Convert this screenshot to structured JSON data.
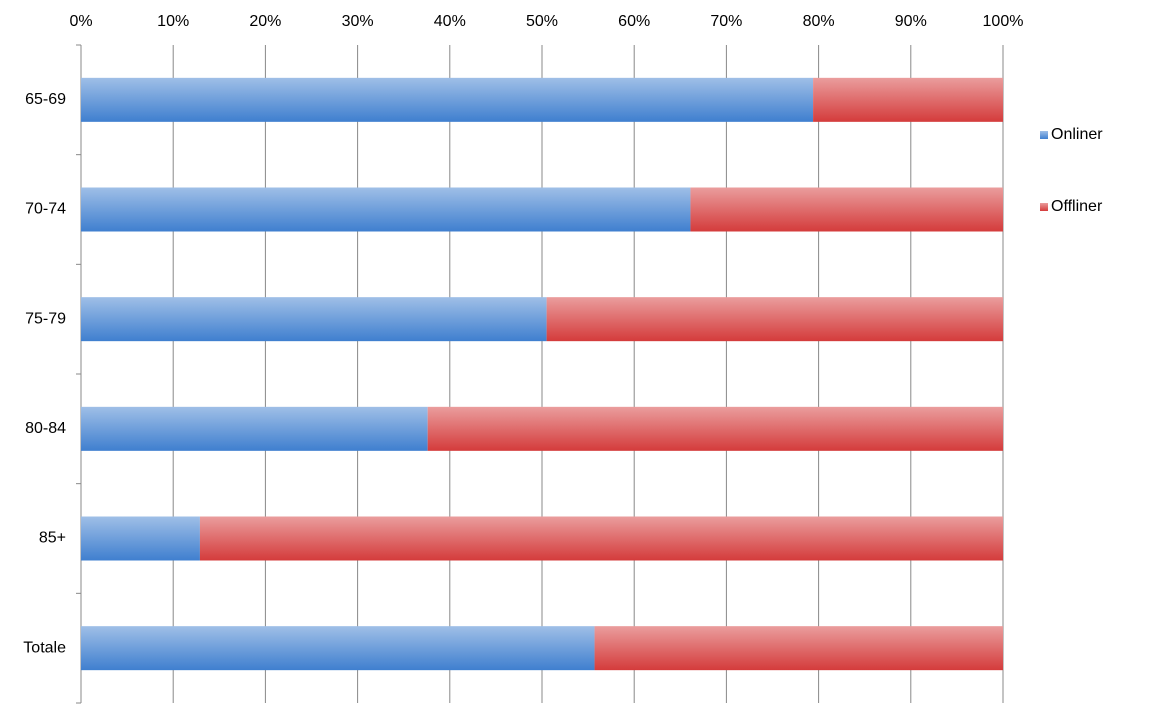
{
  "chart_data": {
    "type": "stacked-bar-horizontal",
    "categories": [
      "65-69",
      "70-74",
      "75-79",
      "80-84",
      "85+",
      "Totale"
    ],
    "series": [
      {
        "name": "Onliner",
        "color": "#3f7fcf",
        "values": [
          79.4,
          66.1,
          50.5,
          37.6,
          12.9,
          55.7
        ]
      },
      {
        "name": "Offliner",
        "color": "#d43b3b",
        "values": [
          20.6,
          33.9,
          49.5,
          62.4,
          87.1,
          44.3
        ]
      }
    ],
    "xlim": [
      0,
      100
    ],
    "xticks": [
      {
        "value": 0,
        "label": "0%"
      },
      {
        "value": 10,
        "label": "10%"
      },
      {
        "value": 20,
        "label": "20%"
      },
      {
        "value": 30,
        "label": "30%"
      },
      {
        "value": 40,
        "label": "40%"
      },
      {
        "value": 50,
        "label": "50%"
      },
      {
        "value": 60,
        "label": "60%"
      },
      {
        "value": 70,
        "label": "70%"
      },
      {
        "value": 80,
        "label": "80%"
      },
      {
        "value": 90,
        "label": "90%"
      },
      {
        "value": 100,
        "label": "100%"
      }
    ],
    "grid": true,
    "legend": "right"
  }
}
